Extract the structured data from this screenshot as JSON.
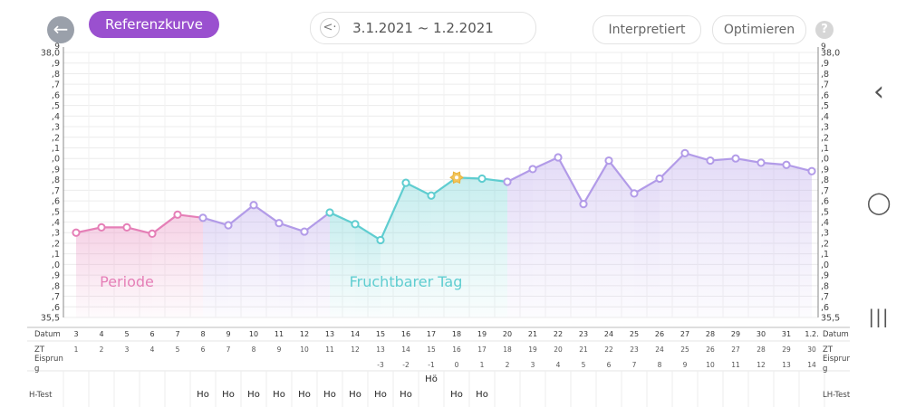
{
  "header": {
    "back_icon": "arrow-left-icon",
    "reference_curve_label": "Referenzkurve",
    "date_range": "3.1.2021 ~ 1.2.2021",
    "date_prev_icon": "chevron-left-icon",
    "interpreted_label": "Interpretiert",
    "optimize_label": "Optimieren",
    "help_label": "?"
  },
  "navbar": {
    "back_glyph": "‹",
    "home_glyph": "◯",
    "recents_glyph": "|||"
  },
  "colors": {
    "accent": "#9a50cf",
    "period": "#e57fb7",
    "fertile": "#5fcdd0",
    "normal": "#b29be8",
    "ovulation": "#f1c45a"
  },
  "chart_data": {
    "type": "line",
    "ylim": [
      35.5,
      38.0
    ],
    "y_axis_left_labels": [
      "38,0",
      ",9",
      ",8",
      ",7",
      ",6",
      ",5",
      ",4",
      ",3",
      ",2",
      ",1",
      ",0",
      ",9",
      ",8",
      ",7",
      ",6",
      ",5",
      ",4",
      ",3",
      ",2",
      ",1",
      ",0",
      ",9",
      ",8",
      ",7",
      ",6",
      "35,5"
    ],
    "y_axis_right_labels": [
      "38,0",
      ",9",
      ",8",
      ",7",
      ",6",
      ",5",
      ",4",
      ",3",
      ",2",
      ",1",
      ",0",
      ",9",
      ",8",
      ",7",
      ",6",
      ",5",
      ",4",
      ",3",
      ",2",
      ",1",
      ",0",
      ",9",
      ",8",
      ",7",
      ",6",
      "35,5"
    ],
    "y_top_extra": "9",
    "period_label": "Periode",
    "fertile_label": "Fruchtbarer Tag",
    "period_range": [
      0,
      5
    ],
    "fertile_range": [
      10,
      17
    ],
    "ovulation_index": 15,
    "series": [
      {
        "values": [
          36.3,
          36.35,
          36.35,
          36.29,
          36.47,
          36.44,
          36.37,
          36.56,
          36.39,
          36.31,
          36.49,
          36.38,
          36.23,
          36.77,
          36.65,
          36.82,
          36.81,
          36.78,
          36.9,
          37.01,
          36.57,
          36.98,
          36.67,
          36.81,
          37.05,
          36.98,
          37.0,
          36.96,
          36.94,
          36.88
        ]
      }
    ],
    "table": {
      "row_labels": [
        "Datum",
        "ZT",
        "Eisprun",
        "LH-Test"
      ],
      "row_labels_right": [
        "Datum",
        "ZT",
        "Eisprun",
        "LH-Test"
      ],
      "eisprung_suffix": "g",
      "lh_left_label": "H-Test",
      "dates": [
        "3",
        "4",
        "5",
        "6",
        "7",
        "8",
        "9",
        "10",
        "11",
        "12",
        "13",
        "14",
        "15",
        "16",
        "17",
        "18",
        "19",
        "20",
        "21",
        "22",
        "23",
        "24",
        "25",
        "26",
        "27",
        "28",
        "29",
        "30",
        "31",
        "1.2."
      ],
      "cycle_days": [
        "1",
        "2",
        "3",
        "4",
        "5",
        "6",
        "7",
        "8",
        "9",
        "10",
        "11",
        "12",
        "13",
        "14",
        "15",
        "16",
        "17",
        "18",
        "19",
        "20",
        "21",
        "22",
        "23",
        "24",
        "25",
        "26",
        "27",
        "28",
        "29",
        "30"
      ],
      "ovulation_offsets": [
        "",
        "",
        "",
        "",
        "",
        "",
        "",
        "",
        "",
        "",
        "",
        "",
        "-3",
        "-2",
        "-1",
        "0",
        "1",
        "2",
        "3",
        "4",
        "5",
        "6",
        "7",
        "8",
        "9",
        "10",
        "11",
        "12",
        "13",
        "14"
      ],
      "lh_tests": [
        "",
        "",
        "",
        "",
        "",
        "Ho",
        "Ho",
        "Ho",
        "Ho",
        "Ho",
        "Ho",
        "Ho",
        "Ho",
        "Ho",
        "Hö",
        "Ho",
        "Ho",
        "",
        "",
        "",
        "",
        "",
        "",
        "",
        "",
        "",
        "",
        "",
        "",
        ""
      ]
    }
  }
}
